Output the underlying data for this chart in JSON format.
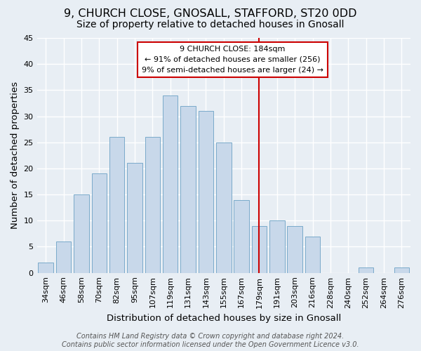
{
  "title": "9, CHURCH CLOSE, GNOSALL, STAFFORD, ST20 0DD",
  "subtitle": "Size of property relative to detached houses in Gnosall",
  "xlabel": "Distribution of detached houses by size in Gnosall",
  "ylabel": "Number of detached properties",
  "bar_labels": [
    "34sqm",
    "46sqm",
    "58sqm",
    "70sqm",
    "82sqm",
    "95sqm",
    "107sqm",
    "119sqm",
    "131sqm",
    "143sqm",
    "155sqm",
    "167sqm",
    "179sqm",
    "191sqm",
    "203sqm",
    "216sqm",
    "228sqm",
    "240sqm",
    "252sqm",
    "264sqm",
    "276sqm"
  ],
  "bar_values": [
    2,
    6,
    15,
    19,
    26,
    21,
    26,
    34,
    32,
    31,
    25,
    14,
    9,
    10,
    9,
    7,
    0,
    0,
    1,
    0,
    1
  ],
  "bar_color": "#c8d8ea",
  "bar_edge_color": "#7aaaca",
  "vline_x_index": 12,
  "vline_color": "#cc0000",
  "ylim": [
    0,
    45
  ],
  "yticks": [
    0,
    5,
    10,
    15,
    20,
    25,
    30,
    35,
    40,
    45
  ],
  "annotation_title": "9 CHURCH CLOSE: 184sqm",
  "annotation_line1": "← 91% of detached houses are smaller (256)",
  "annotation_line2": "9% of semi-detached houses are larger (24) →",
  "annotation_box_color": "#ffffff",
  "annotation_box_edge": "#cc0000",
  "footer1": "Contains HM Land Registry data © Crown copyright and database right 2024.",
  "footer2": "Contains public sector information licensed under the Open Government Licence v3.0.",
  "background_color": "#e8eef4",
  "plot_bg_color": "#e8eef4",
  "grid_color": "#ffffff",
  "title_fontsize": 11.5,
  "subtitle_fontsize": 10,
  "axis_label_fontsize": 9.5,
  "tick_fontsize": 8,
  "annotation_fontsize": 8,
  "footer_fontsize": 7
}
